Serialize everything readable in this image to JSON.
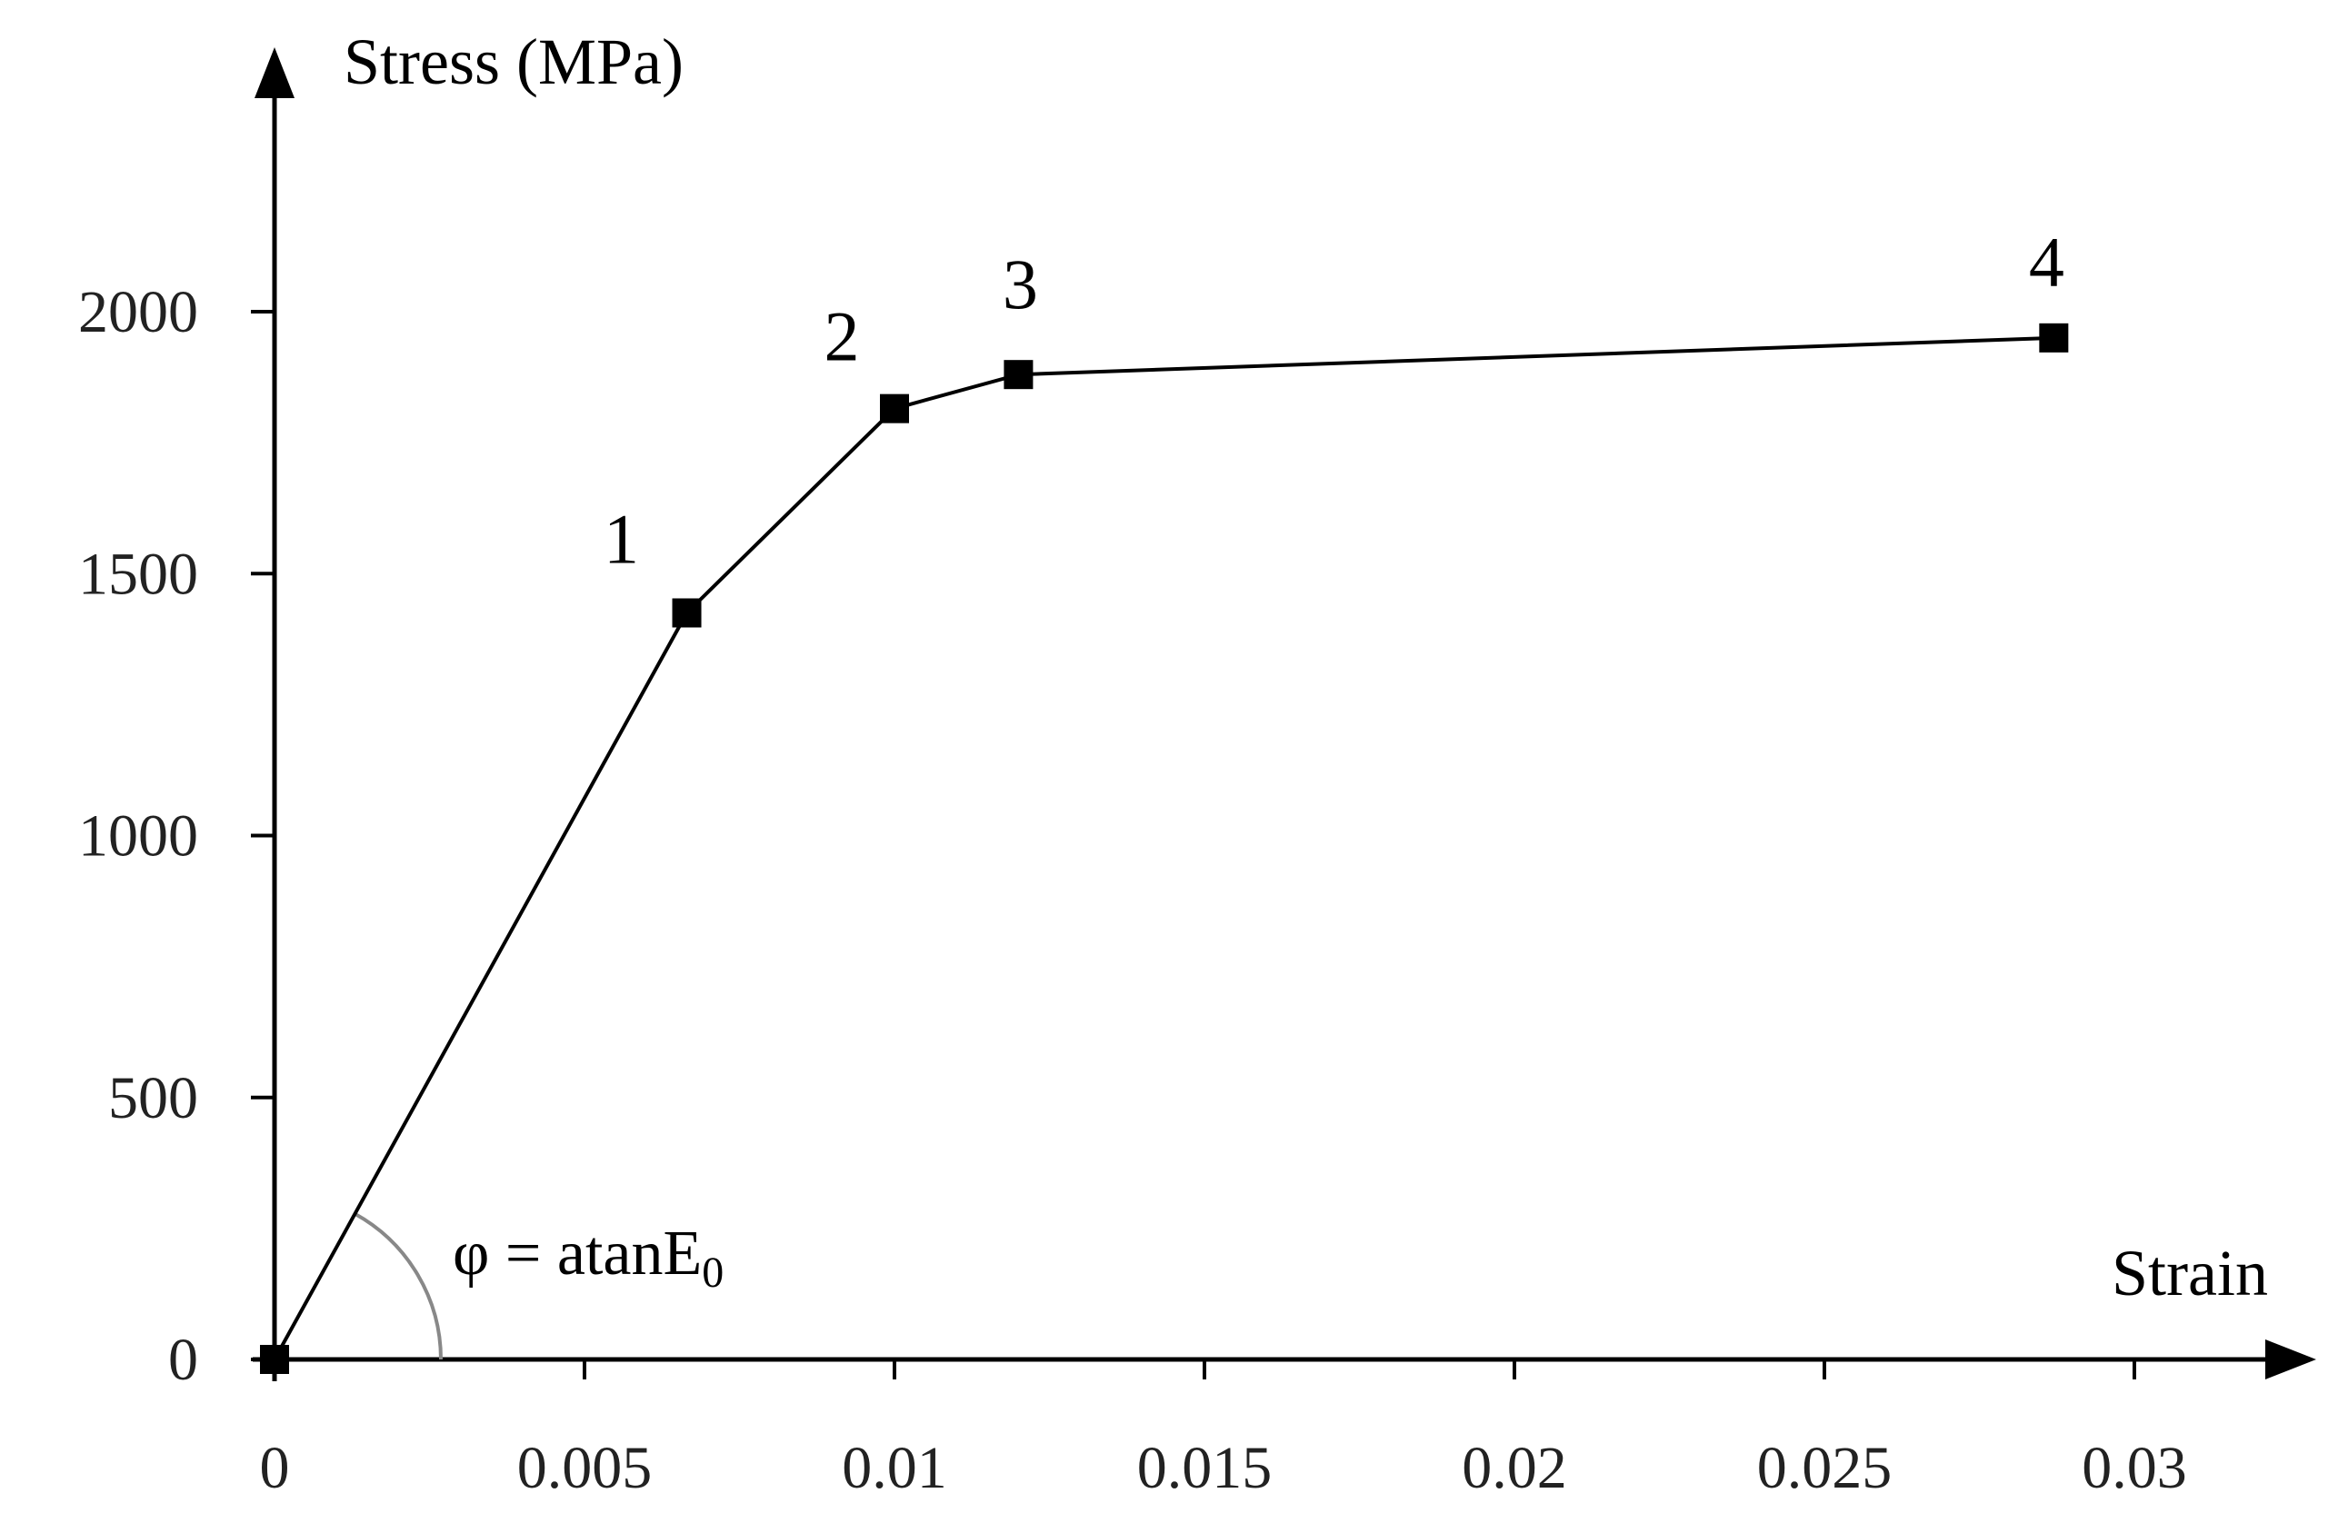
{
  "chart_data": {
    "type": "line",
    "title": "",
    "xlabel": "Strain",
    "ylabel": "Stress (MPa)",
    "xlim": [
      0,
      0.03
    ],
    "ylim": [
      0,
      2000
    ],
    "x_ticks": [
      0,
      0.005,
      0.01,
      0.015,
      0.02,
      0.025,
      0.03
    ],
    "x_tick_labels": [
      "0",
      "0.005",
      "0.01",
      "0.015",
      "0.02",
      "0.025",
      "0.03"
    ],
    "y_ticks": [
      0,
      500,
      1000,
      1500,
      2000
    ],
    "y_tick_labels": [
      "0",
      "500",
      "1000",
      "1500",
      "2000"
    ],
    "grid": false,
    "legend": "none",
    "marker": "square",
    "line_color": "#000000",
    "annotation_arc_color": "#888888",
    "series": [
      {
        "x": [
          0,
          0.00665,
          0.01,
          0.012,
          0.0287
        ],
        "y": [
          0,
          1425,
          1815,
          1880,
          1950
        ],
        "point_labels": [
          "",
          "1",
          "2",
          "3",
          "4"
        ]
      }
    ],
    "annotations": {
      "angle_symbol": "φ = atanE",
      "angle_subscript": "0"
    }
  }
}
